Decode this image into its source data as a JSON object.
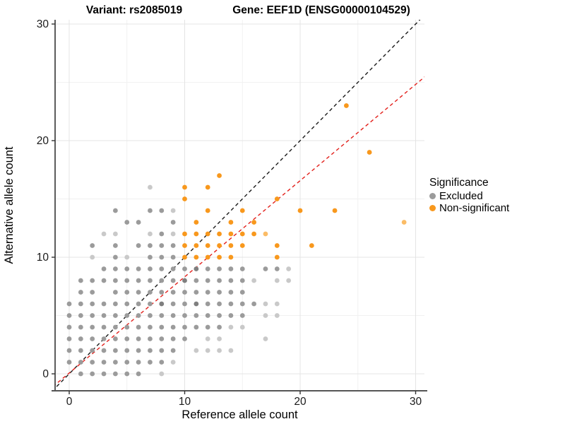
{
  "header": {
    "title_left": "Variant: rs2085019",
    "title_right": "Gene: EEF1D (ENSG00000104529)"
  },
  "legend": {
    "title": "Significance",
    "items": [
      {
        "label": "Excluded",
        "color": "#9b9b9b"
      },
      {
        "label": "Non-significant",
        "color": "#f8981d"
      }
    ]
  },
  "chart_data": {
    "type": "scatter",
    "title": "Variant: rs2085019 / Gene: EEF1D (ENSG00000104529)",
    "xlabel": "Reference allele count",
    "ylabel": "Alternative allele count",
    "x_ticks": [
      0,
      10,
      20,
      30
    ],
    "y_ticks": [
      0,
      10,
      20,
      30
    ],
    "x_minor_ticks": [
      5,
      15,
      25
    ],
    "y_minor_ticks": [
      5,
      15,
      25
    ],
    "xlim": [
      -1.25,
      30.8
    ],
    "ylim": [
      -1.45,
      30.4
    ],
    "grid": "on",
    "legend_position": "right",
    "point_colors": {
      "0": "#9b9b9b",
      "1": "#c9c9c9",
      "2": "#7f7f7f"
    },
    "orange_colors": {
      "0": "#f8981d",
      "1": "#fbbc66"
    },
    "lines": [
      {
        "name": "identity-line",
        "slope": 1.0,
        "intercept": 0.0,
        "color": "#1a1a1a",
        "dash": "5,4"
      },
      {
        "name": "fit-line",
        "slope": 0.825,
        "intercept": 0.07,
        "color": "#e3201b",
        "dash": "5,4"
      }
    ],
    "series": [
      {
        "name": "Excluded",
        "color": "#9b9b9b",
        "points": [
          [
            1,
            0,
            0
          ],
          [
            2,
            0,
            0
          ],
          [
            3,
            0,
            0
          ],
          [
            4,
            0,
            0
          ],
          [
            5,
            0,
            0
          ],
          [
            6,
            0,
            0
          ],
          [
            8,
            0,
            1
          ],
          [
            0,
            1,
            0
          ],
          [
            1,
            1,
            0
          ],
          [
            2,
            1,
            0
          ],
          [
            3,
            1,
            0
          ],
          [
            4,
            1,
            0
          ],
          [
            5,
            1,
            0
          ],
          [
            6,
            1,
            0
          ],
          [
            7,
            1,
            0
          ],
          [
            8,
            1,
            0
          ],
          [
            9,
            1,
            1
          ],
          [
            0,
            2,
            0
          ],
          [
            1,
            2,
            0
          ],
          [
            2,
            2,
            0
          ],
          [
            3,
            2,
            0
          ],
          [
            4,
            2,
            0
          ],
          [
            5,
            2,
            0
          ],
          [
            6,
            2,
            0
          ],
          [
            7,
            2,
            0
          ],
          [
            8,
            2,
            0
          ],
          [
            9,
            2,
            0
          ],
          [
            11,
            2,
            1
          ],
          [
            12,
            2,
            1
          ],
          [
            13,
            2,
            1
          ],
          [
            14,
            2,
            1
          ],
          [
            0,
            3,
            0
          ],
          [
            1,
            3,
            0
          ],
          [
            2,
            3,
            0
          ],
          [
            3,
            3,
            0
          ],
          [
            4,
            3,
            0
          ],
          [
            5,
            3,
            0
          ],
          [
            6,
            3,
            0
          ],
          [
            7,
            3,
            0
          ],
          [
            8,
            3,
            0
          ],
          [
            9,
            3,
            0
          ],
          [
            10,
            3,
            0
          ],
          [
            12,
            3,
            1
          ],
          [
            13,
            3,
            1
          ],
          [
            17,
            3,
            1
          ],
          [
            0,
            4,
            0
          ],
          [
            1,
            4,
            0
          ],
          [
            2,
            4,
            0
          ],
          [
            3,
            4,
            0
          ],
          [
            4,
            4,
            0
          ],
          [
            5,
            4,
            0
          ],
          [
            6,
            4,
            0
          ],
          [
            7,
            4,
            0
          ],
          [
            8,
            4,
            0
          ],
          [
            9,
            4,
            0
          ],
          [
            10,
            4,
            0
          ],
          [
            11,
            4,
            0
          ],
          [
            12,
            4,
            0
          ],
          [
            13,
            4,
            0
          ],
          [
            14,
            4,
            1
          ],
          [
            15,
            4,
            1
          ],
          [
            0,
            5,
            0
          ],
          [
            1,
            5,
            0
          ],
          [
            2,
            5,
            0
          ],
          [
            3,
            5,
            0
          ],
          [
            4,
            5,
            0
          ],
          [
            5,
            5,
            0
          ],
          [
            6,
            5,
            0
          ],
          [
            7,
            5,
            0
          ],
          [
            8,
            5,
            0
          ],
          [
            9,
            5,
            0
          ],
          [
            10,
            5,
            0
          ],
          [
            11,
            5,
            0
          ],
          [
            12,
            5,
            0
          ],
          [
            13,
            5,
            0
          ],
          [
            14,
            5,
            0
          ],
          [
            15,
            5,
            0
          ],
          [
            17,
            5,
            1
          ],
          [
            18,
            5,
            1
          ],
          [
            0,
            6,
            0
          ],
          [
            1,
            6,
            0
          ],
          [
            2,
            6,
            0
          ],
          [
            3,
            6,
            0
          ],
          [
            4,
            6,
            0
          ],
          [
            5,
            6,
            0
          ],
          [
            6,
            6,
            0
          ],
          [
            7,
            6,
            0
          ],
          [
            8,
            6,
            2
          ],
          [
            9,
            6,
            0
          ],
          [
            10,
            6,
            0
          ],
          [
            11,
            6,
            2
          ],
          [
            12,
            6,
            0
          ],
          [
            13,
            6,
            0
          ],
          [
            14,
            6,
            0
          ],
          [
            15,
            6,
            0
          ],
          [
            16,
            6,
            0
          ],
          [
            17,
            6,
            1
          ],
          [
            18,
            6,
            1
          ],
          [
            1,
            7,
            0
          ],
          [
            2,
            7,
            0
          ],
          [
            4,
            7,
            0
          ],
          [
            5,
            7,
            0
          ],
          [
            6,
            7,
            0
          ],
          [
            7,
            7,
            0
          ],
          [
            8,
            7,
            0
          ],
          [
            9,
            7,
            0
          ],
          [
            10,
            7,
            0
          ],
          [
            11,
            7,
            0
          ],
          [
            12,
            7,
            0
          ],
          [
            13,
            7,
            0
          ],
          [
            14,
            7,
            0
          ],
          [
            15,
            7,
            0
          ],
          [
            1,
            8,
            0
          ],
          [
            2,
            8,
            0
          ],
          [
            3,
            8,
            0
          ],
          [
            4,
            8,
            0
          ],
          [
            5,
            8,
            0
          ],
          [
            6,
            8,
            0
          ],
          [
            7,
            8,
            0
          ],
          [
            8,
            8,
            0
          ],
          [
            9,
            8,
            0
          ],
          [
            10,
            8,
            2
          ],
          [
            11,
            8,
            0
          ],
          [
            12,
            8,
            0
          ],
          [
            13,
            8,
            0
          ],
          [
            14,
            8,
            0
          ],
          [
            15,
            8,
            0
          ],
          [
            16,
            8,
            1
          ],
          [
            18,
            8,
            1
          ],
          [
            19,
            8,
            1
          ],
          [
            3,
            9,
            0
          ],
          [
            4,
            9,
            0
          ],
          [
            5,
            9,
            0
          ],
          [
            6,
            9,
            0
          ],
          [
            7,
            9,
            0
          ],
          [
            8,
            9,
            0
          ],
          [
            9,
            9,
            0
          ],
          [
            10,
            9,
            0
          ],
          [
            11,
            9,
            2
          ],
          [
            12,
            9,
            0
          ],
          [
            13,
            9,
            0
          ],
          [
            14,
            9,
            0
          ],
          [
            15,
            9,
            0
          ],
          [
            17,
            9,
            0
          ],
          [
            18,
            9,
            0
          ],
          [
            19,
            9,
            1
          ],
          [
            2,
            10,
            1
          ],
          [
            4,
            10,
            0
          ],
          [
            5,
            10,
            1
          ],
          [
            7,
            10,
            0
          ],
          [
            8,
            10,
            0
          ],
          [
            9,
            10,
            0
          ],
          [
            2,
            11,
            0
          ],
          [
            4,
            11,
            0
          ],
          [
            6,
            11,
            0
          ],
          [
            7,
            11,
            0
          ],
          [
            8,
            11,
            0
          ],
          [
            9,
            11,
            0
          ],
          [
            3,
            12,
            1
          ],
          [
            4,
            12,
            1
          ],
          [
            7,
            12,
            1
          ],
          [
            8,
            12,
            0
          ],
          [
            9,
            12,
            1
          ],
          [
            5,
            13,
            0
          ],
          [
            6,
            13,
            0
          ],
          [
            9,
            13,
            0
          ],
          [
            4,
            14,
            0
          ],
          [
            7,
            14,
            0
          ],
          [
            8,
            14,
            0
          ],
          [
            9,
            14,
            1
          ],
          [
            7,
            16,
            1
          ]
        ]
      },
      {
        "name": "Non-significant",
        "color": "#f8981d",
        "points": [
          [
            10,
            10,
            0
          ],
          [
            11,
            10,
            0
          ],
          [
            12,
            10,
            0
          ],
          [
            13,
            10,
            0
          ],
          [
            14,
            10,
            0
          ],
          [
            18,
            10,
            0
          ],
          [
            10,
            11,
            0
          ],
          [
            11,
            11,
            0
          ],
          [
            12,
            11,
            0
          ],
          [
            13,
            11,
            0
          ],
          [
            14,
            11,
            0
          ],
          [
            15,
            11,
            0
          ],
          [
            18,
            11,
            0
          ],
          [
            21,
            11,
            0
          ],
          [
            10,
            12,
            0
          ],
          [
            11,
            12,
            0
          ],
          [
            12,
            12,
            0
          ],
          [
            13,
            12,
            0
          ],
          [
            14,
            12,
            0
          ],
          [
            15,
            12,
            0
          ],
          [
            16,
            12,
            0
          ],
          [
            17,
            12,
            1
          ],
          [
            11,
            13,
            0
          ],
          [
            14,
            13,
            0
          ],
          [
            16,
            13,
            0
          ],
          [
            29,
            13,
            1
          ],
          [
            12,
            14,
            0
          ],
          [
            15,
            14,
            0
          ],
          [
            20,
            14,
            0
          ],
          [
            23,
            14,
            0
          ],
          [
            10,
            15,
            0
          ],
          [
            18,
            15,
            0
          ],
          [
            10,
            16,
            0
          ],
          [
            12,
            16,
            0
          ],
          [
            13,
            17,
            0
          ],
          [
            26,
            19,
            0
          ],
          [
            24,
            23,
            0
          ]
        ]
      }
    ]
  }
}
